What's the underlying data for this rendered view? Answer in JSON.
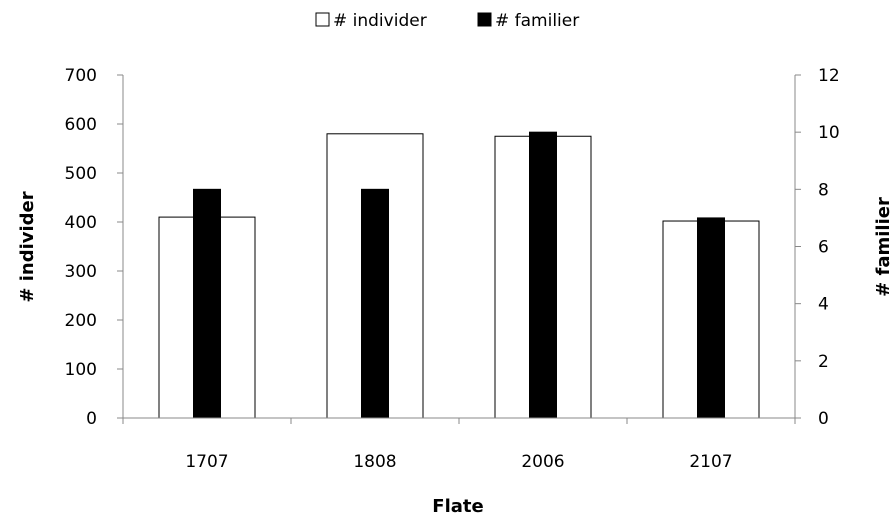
{
  "chart_data": {
    "type": "bar",
    "categories": [
      "1707",
      "1808",
      "2006",
      "2107"
    ],
    "series": [
      {
        "name": "# individer",
        "axis": "left",
        "fill": "#ffffff",
        "stroke": "#000000",
        "values": [
          410,
          580,
          575,
          402
        ]
      },
      {
        "name": "# familier",
        "axis": "right",
        "fill": "#000000",
        "stroke": "#000000",
        "values": [
          8,
          8,
          10,
          7
        ]
      }
    ],
    "xlabel": "Flate",
    "ylabel": "# individer",
    "y2label": "# familier",
    "ylim": [
      0,
      700
    ],
    "yticks": [
      0,
      100,
      200,
      300,
      400,
      500,
      600,
      700
    ],
    "y2lim": [
      0,
      12
    ],
    "y2ticks": [
      0,
      2,
      4,
      6,
      8,
      10,
      12
    ],
    "grid": false,
    "legend_position": "top-center"
  }
}
